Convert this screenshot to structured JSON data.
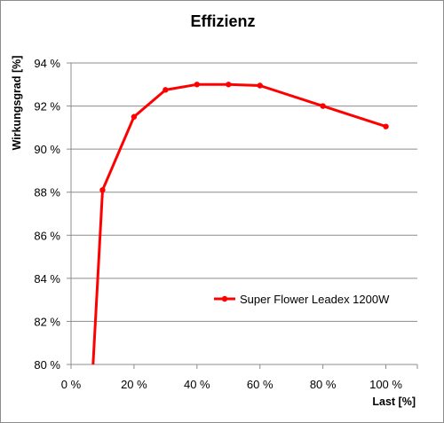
{
  "chart_data": {
    "type": "line",
    "title": "Effizienz",
    "xlabel": "Last [%]",
    "ylabel": "Wirkungsgrad [%]",
    "xlim": [
      0,
      110
    ],
    "ylim": [
      80,
      94
    ],
    "x_ticks": [
      0,
      20,
      40,
      60,
      80,
      100
    ],
    "x_tick_labels": [
      "0 %",
      "20 %",
      "40 %",
      "60 %",
      "80 %",
      "100 %"
    ],
    "y_ticks": [
      80,
      82,
      84,
      86,
      88,
      90,
      92,
      94
    ],
    "y_tick_labels": [
      "80 %",
      "82 %",
      "84 %",
      "86 %",
      "88 %",
      "90 %",
      "92 %",
      "94 %"
    ],
    "grid": "horizontal",
    "legend": "inside-right",
    "series": [
      {
        "name": "Super Flower Leadex 1200W",
        "color": "#ff0000",
        "x": [
          10,
          20,
          30,
          40,
          50,
          60,
          80,
          100
        ],
        "y": [
          88.1,
          91.5,
          92.75,
          93.0,
          93.0,
          92.95,
          92.0,
          91.05
        ],
        "clipped_start": {
          "x": 7,
          "y": 80
        }
      }
    ]
  }
}
